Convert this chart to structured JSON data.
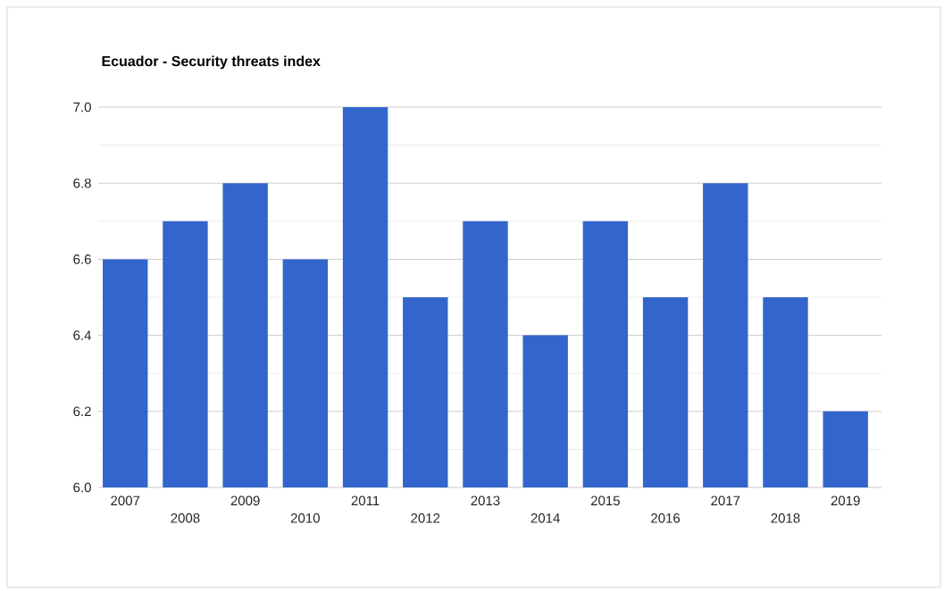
{
  "chart_data": {
    "type": "bar",
    "title": "Ecuador - Security threats index",
    "categories": [
      "2007",
      "2008",
      "2009",
      "2010",
      "2011",
      "2012",
      "2013",
      "2014",
      "2015",
      "2016",
      "2017",
      "2018",
      "2019"
    ],
    "values": [
      6.6,
      6.7,
      6.8,
      6.6,
      7.0,
      6.5,
      6.7,
      6.4,
      6.7,
      6.5,
      6.8,
      6.5,
      6.2
    ],
    "color": "#3366cc",
    "ylim": [
      6.0,
      7.0
    ],
    "yticks": [
      {
        "value": 6.0,
        "label": "6.0"
      },
      {
        "value": 6.2,
        "label": "6.2"
      },
      {
        "value": 6.4,
        "label": "6.4"
      },
      {
        "value": 6.6,
        "label": "6.6"
      },
      {
        "value": 6.8,
        "label": "6.8"
      },
      {
        "value": 7.0,
        "label": "7.0"
      }
    ],
    "grid": "y"
  }
}
